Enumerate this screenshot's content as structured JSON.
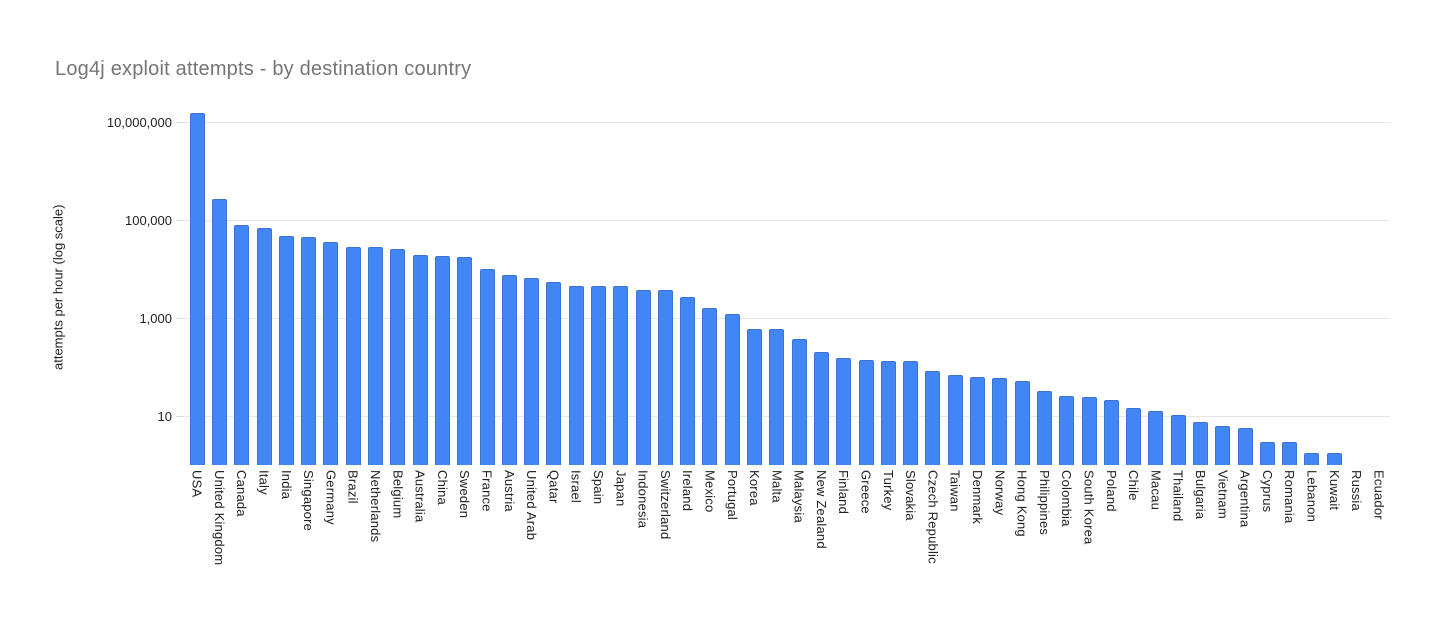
{
  "chart_data": {
    "type": "bar",
    "title": "Log4j exploit attempts - by destination country",
    "ylabel": "attempts per hour (log scale)",
    "xlabel": "",
    "y_scale": "log",
    "ylim": [
      1,
      30000000
    ],
    "grid": true,
    "legend_position": "none",
    "bar_color": "#4285F4",
    "bar_border_color": "#3B73D1",
    "gridline_color": "#e6e6e6",
    "title_color": "#757575",
    "axis_text_color": "#222222",
    "y_ticks": [
      {
        "label": "10",
        "value": 10
      },
      {
        "label": "1,000",
        "value": 1000
      },
      {
        "label": "100,000",
        "value": 100000
      },
      {
        "label": "10,000,000",
        "value": 10000000
      }
    ],
    "categories": [
      "USA",
      "United Kingdom",
      "Canada",
      "Italy",
      "India",
      "Singapore",
      "Germany",
      "Brazil",
      "Netherlands",
      "Belgium",
      "Australia",
      "China",
      "Sweden",
      "France",
      "Austria",
      "United Arab",
      "Qatar",
      "Israel",
      "Spain",
      "Japan",
      "Indonesia",
      "Switzerland",
      "Ireland",
      "Mexico",
      "Portugal",
      "Korea",
      "Malta",
      "Malaysia",
      "New Zealand",
      "Finland",
      "Greece",
      "Turkey",
      "Slovakia",
      "Czech Republic",
      "Taiwan",
      "Denmark",
      "Norway",
      "Hong Kong",
      "Philippines",
      "Colombia",
      "South Korea",
      "Poland",
      "Chile",
      "Macau",
      "Thailand",
      "Bulgaria",
      "Vietnam",
      "Argentina",
      "Cyprus",
      "Romania",
      "Lebanon",
      "Kuwait",
      "Russia",
      "Ecuador"
    ],
    "values": [
      15000000,
      270000,
      80000,
      70000,
      47000,
      44000,
      35000,
      28000,
      28000,
      26000,
      19000,
      18500,
      17500,
      10000,
      7500,
      6500,
      5500,
      4600,
      4600,
      4600,
      3700,
      3800,
      2700,
      1600,
      1200,
      600,
      600,
      380,
      200,
      155,
      140,
      130,
      130,
      82,
      70,
      62,
      61,
      53,
      33,
      26,
      24,
      21,
      14.5,
      12.5,
      10.5,
      7.7,
      6.3,
      5.6,
      2.9,
      2.9,
      1.8,
      1.8,
      1,
      1
    ]
  }
}
